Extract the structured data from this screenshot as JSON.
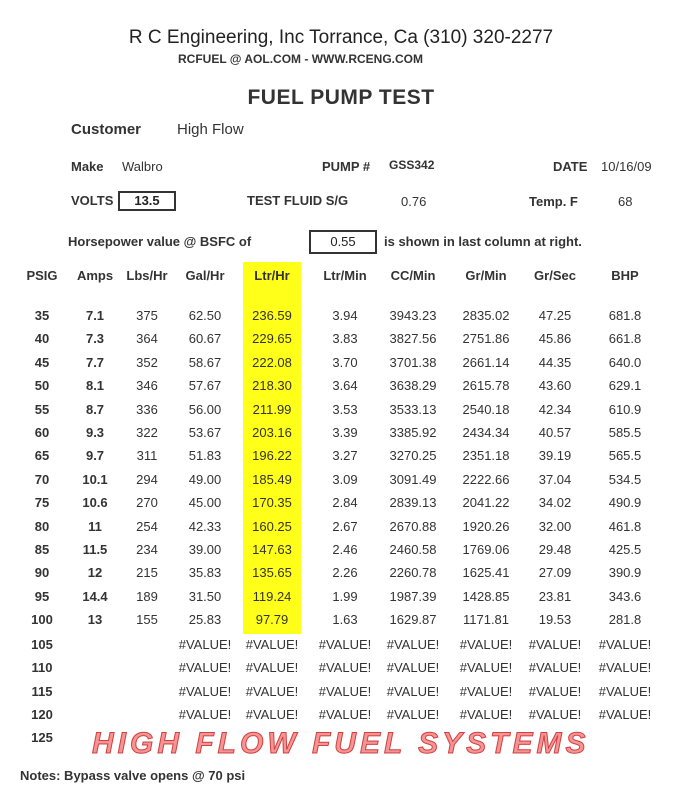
{
  "header": {
    "company": "R C Engineering, Inc  Torrance,  Ca  (310) 320-2277",
    "contact": "RCFUEL @ AOL.COM -  WWW.RCENG.COM",
    "title": "FUEL PUMP TEST"
  },
  "info": {
    "customer_label": "Customer",
    "customer": "High Flow",
    "make_label": "Make",
    "make": "Walbro",
    "pump_label": "PUMP #",
    "pump": "GSS342",
    "date_label": "DATE",
    "date": "10/16/09",
    "volts_label": "VOLTS",
    "volts": "13.5",
    "fluid_label": "TEST FLUID  S/G",
    "fluid_sg": "0.76",
    "temp_label": "Temp.  F",
    "temp": "68",
    "hp_label": "Horsepower value @  BSFC of",
    "bsfc": "0.55",
    "hp_suffix": "is shown in last column at right."
  },
  "watermark": "HIGH FLOW FUEL SYSTEMS",
  "highlight_color": "#ffff1a",
  "table": {
    "columns": [
      "PSIG",
      "Amps",
      "Lbs/Hr",
      "Gal/Hr",
      "Ltr/Hr",
      "Ltr/Min",
      "CC/Min",
      "Gr/Min",
      "Gr/Sec",
      "BHP"
    ],
    "rows": [
      [
        "35",
        "7.1",
        "375",
        "62.50",
        "236.59",
        "3.94",
        "3943.23",
        "2835.02",
        "47.25",
        "681.8"
      ],
      [
        "40",
        "7.3",
        "364",
        "60.67",
        "229.65",
        "3.83",
        "3827.56",
        "2751.86",
        "45.86",
        "661.8"
      ],
      [
        "45",
        "7.7",
        "352",
        "58.67",
        "222.08",
        "3.70",
        "3701.38",
        "2661.14",
        "44.35",
        "640.0"
      ],
      [
        "50",
        "8.1",
        "346",
        "57.67",
        "218.30",
        "3.64",
        "3638.29",
        "2615.78",
        "43.60",
        "629.1"
      ],
      [
        "55",
        "8.7",
        "336",
        "56.00",
        "211.99",
        "3.53",
        "3533.13",
        "2540.18",
        "42.34",
        "610.9"
      ],
      [
        "60",
        "9.3",
        "322",
        "53.67",
        "203.16",
        "3.39",
        "3385.92",
        "2434.34",
        "40.57",
        "585.5"
      ],
      [
        "65",
        "9.7",
        "311",
        "51.83",
        "196.22",
        "3.27",
        "3270.25",
        "2351.18",
        "39.19",
        "565.5"
      ],
      [
        "70",
        "10.1",
        "294",
        "49.00",
        "185.49",
        "3.09",
        "3091.49",
        "2222.66",
        "37.04",
        "534.5"
      ],
      [
        "75",
        "10.6",
        "270",
        "45.00",
        "170.35",
        "2.84",
        "2839.13",
        "2041.22",
        "34.02",
        "490.9"
      ],
      [
        "80",
        "11",
        "254",
        "42.33",
        "160.25",
        "2.67",
        "2670.88",
        "1920.26",
        "32.00",
        "461.8"
      ],
      [
        "85",
        "11.5",
        "234",
        "39.00",
        "147.63",
        "2.46",
        "2460.58",
        "1769.06",
        "29.48",
        "425.5"
      ],
      [
        "90",
        "12",
        "215",
        "35.83",
        "135.65",
        "2.26",
        "2260.78",
        "1625.41",
        "27.09",
        "390.9"
      ],
      [
        "95",
        "14.4",
        "189",
        "31.50",
        "119.24",
        "1.99",
        "1987.39",
        "1428.85",
        "23.81",
        "343.6"
      ],
      [
        "100",
        "13",
        "155",
        "25.83",
        "97.79",
        "1.63",
        "1629.87",
        "1171.81",
        "19.53",
        "281.8"
      ],
      [
        "105",
        "",
        "",
        "#VALUE!",
        "#VALUE!",
        "#VALUE!",
        "#VALUE!",
        "#VALUE!",
        "#VALUE!",
        "#VALUE!"
      ],
      [
        "110",
        "",
        "",
        "#VALUE!",
        "#VALUE!",
        "#VALUE!",
        "#VALUE!",
        "#VALUE!",
        "#VALUE!",
        "#VALUE!"
      ],
      [
        "115",
        "",
        "",
        "#VALUE!",
        "#VALUE!",
        "#VALUE!",
        "#VALUE!",
        "#VALUE!",
        "#VALUE!",
        "#VALUE!"
      ],
      [
        "120",
        "",
        "",
        "#VALUE!",
        "#VALUE!",
        "#VALUE!",
        "#VALUE!",
        "#VALUE!",
        "#VALUE!",
        "#VALUE!"
      ],
      [
        "125",
        "",
        "",
        "",
        "",
        "",
        "",
        "",
        "",
        ""
      ]
    ]
  },
  "notes": "Notes:  Bypass valve opens @ 70 psi"
}
